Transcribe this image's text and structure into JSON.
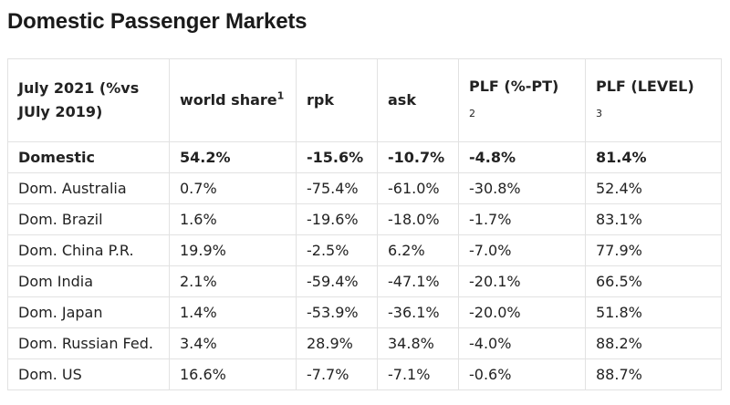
{
  "page": {
    "title": "Domestic Passenger Markets"
  },
  "table": {
    "headers": [
      {
        "label": "July 2021 (%vs JUly 2019)",
        "sup": ""
      },
      {
        "label": "world share",
        "sup": "1"
      },
      {
        "label": "rpk",
        "sup": ""
      },
      {
        "label": "ask",
        "sup": ""
      },
      {
        "label": "PLF (%-PT)",
        "sup": "2"
      },
      {
        "label": "PLF (LEVEL)",
        "sup": "3"
      }
    ],
    "rows": [
      {
        "cells": [
          "Domestic",
          "54.2%",
          "-15.6%",
          "-10.7%",
          "-4.8%",
          "81.4%"
        ],
        "bold": true
      },
      {
        "cells": [
          "Dom. Australia",
          "0.7%",
          "-75.4%",
          "-61.0%",
          "-30.8%",
          "52.4%"
        ],
        "bold": false
      },
      {
        "cells": [
          "Dom. Brazil",
          "1.6%",
          "-19.6%",
          "-18.0%",
          "-1.7%",
          "83.1%"
        ],
        "bold": false
      },
      {
        "cells": [
          "Dom. China P.R.",
          "19.9%",
          "-2.5%",
          "6.2%",
          "-7.0%",
          "77.9%"
        ],
        "bold": false
      },
      {
        "cells": [
          "Dom India",
          "2.1%",
          "-59.4%",
          "-47.1%",
          "-20.1%",
          "66.5%"
        ],
        "bold": false
      },
      {
        "cells": [
          "Dom. Japan",
          "1.4%",
          "-53.9%",
          "-36.1%",
          "-20.0%",
          "51.8%"
        ],
        "bold": false
      },
      {
        "cells": [
          "Dom. Russian Fed.",
          "3.4%",
          "28.9%",
          "34.8%",
          "-4.0%",
          "88.2%"
        ],
        "bold": false
      },
      {
        "cells": [
          "Dom. US",
          "16.6%",
          "-7.7%",
          "-7.1%",
          "-0.6%",
          "88.7%"
        ],
        "bold": false
      }
    ]
  }
}
